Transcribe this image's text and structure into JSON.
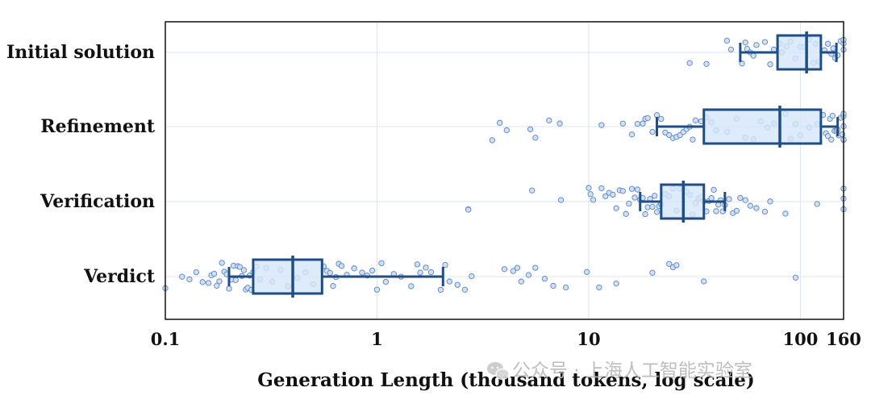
{
  "chart_data": {
    "type": "box",
    "orientation": "horizontal",
    "xlabel": "Generation Length (thousand tokens, log scale)",
    "xscale": "log",
    "xlim": [
      0.1,
      160
    ],
    "xticks": [
      {
        "value": 0.1,
        "label": "0.1"
      },
      {
        "value": 1,
        "label": "1"
      },
      {
        "value": 10,
        "label": "10"
      },
      {
        "value": 100,
        "label": "100"
      },
      {
        "value": 160,
        "label": "160"
      }
    ],
    "grid": true,
    "colors": {
      "box_fill": "#d6e6fa",
      "box_edge": "#1f4e85",
      "point_fill": "#d0e0f7",
      "point_edge": "#5b84c0"
    },
    "categories": [
      "Initial solution",
      "Refinement",
      "Verification",
      "Verdict"
    ],
    "boxes": [
      {
        "name": "Initial solution",
        "whisker_low": 52,
        "q1": 78,
        "median": 107,
        "q3": 125,
        "whisker_high": 148,
        "points": [
          30,
          36,
          45,
          47,
          53,
          55,
          56,
          58,
          60,
          62,
          68,
          72,
          75,
          80,
          82,
          86,
          90,
          95,
          100,
          104,
          110,
          115,
          118,
          122,
          130,
          135,
          140,
          143,
          146,
          150,
          155,
          160,
          160,
          160
        ]
      },
      {
        "name": "Refinement",
        "whisker_low": 21,
        "q1": 35,
        "median": 80,
        "q3": 125,
        "whisker_high": 150,
        "points": [
          3.5,
          3.8,
          4.1,
          5.3,
          5.6,
          6.5,
          7.3,
          11.5,
          14.5,
          16,
          17,
          18,
          18.5,
          19,
          20,
          21,
          22,
          23,
          24,
          25,
          26,
          27,
          28,
          29,
          30,
          31,
          32,
          34,
          36,
          38,
          40,
          45,
          50,
          55,
          60,
          65,
          70,
          75,
          85,
          90,
          95,
          100,
          110,
          120,
          128,
          132,
          135,
          138,
          140,
          142,
          145,
          148,
          150,
          152,
          155,
          158,
          160,
          160,
          160,
          160,
          160
        ]
      },
      {
        "name": "Verification",
        "whisker_low": 17.5,
        "q1": 22,
        "median": 28,
        "q3": 35,
        "whisker_high": 44,
        "points": [
          2.7,
          2.7,
          5.4,
          7.4,
          10,
          10.2,
          10.5,
          11.5,
          12,
          12.5,
          13,
          13.5,
          14,
          14.5,
          15,
          15.5,
          16,
          16.5,
          17,
          17.5,
          18,
          18.5,
          19,
          19.5,
          20,
          20.5,
          21,
          21.5,
          22,
          23,
          24,
          25,
          26,
          27,
          28,
          29,
          30,
          31,
          32,
          33,
          34,
          35,
          36,
          37,
          38,
          39,
          40,
          41,
          42,
          43,
          44,
          46,
          48,
          50,
          52,
          55,
          58,
          62,
          68,
          72,
          85,
          120,
          160,
          160,
          160
        ]
      },
      {
        "name": "Verdict",
        "whisker_low": 0.2,
        "q1": 0.26,
        "median": 0.4,
        "q3": 0.55,
        "whisker_high": 2.05,
        "points": [
          0.1,
          0.12,
          0.13,
          0.14,
          0.15,
          0.16,
          0.165,
          0.17,
          0.175,
          0.18,
          0.185,
          0.19,
          0.195,
          0.2,
          0.205,
          0.21,
          0.215,
          0.22,
          0.225,
          0.23,
          0.235,
          0.24,
          0.245,
          0.25,
          0.255,
          0.26,
          0.27,
          0.28,
          0.3,
          0.32,
          0.35,
          0.38,
          0.42,
          0.46,
          0.5,
          0.56,
          0.58,
          0.6,
          0.62,
          0.64,
          0.66,
          0.68,
          0.72,
          0.78,
          0.85,
          0.9,
          0.95,
          1.0,
          1.05,
          1.1,
          1.2,
          1.3,
          1.45,
          1.55,
          1.6,
          1.7,
          1.8,
          2.0,
          2.1,
          2.2,
          2.4,
          2.6,
          2.8,
          4.0,
          4.4,
          4.6,
          4.8,
          5.2,
          5.6,
          6.2,
          6.8,
          7.8,
          9.8,
          11.2,
          13.5,
          20,
          24,
          25,
          26,
          35,
          95
        ]
      }
    ]
  },
  "watermark": {
    "text": "公众号 · 上海人工智能实验室"
  },
  "icons": {
    "watermark_logo": "wechat-icon"
  }
}
